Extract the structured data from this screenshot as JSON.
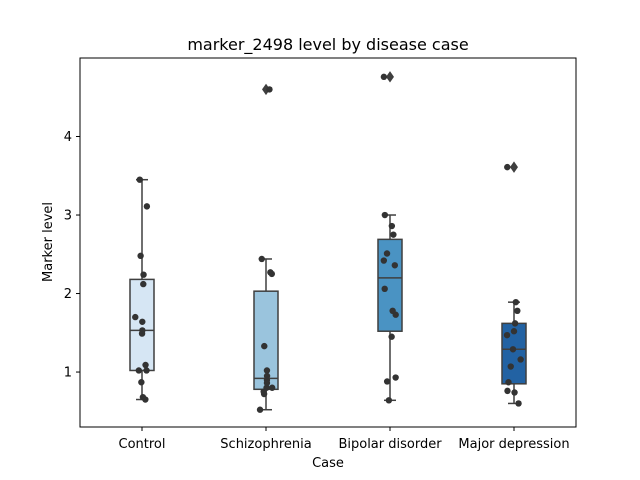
{
  "chart_data": {
    "type": "box",
    "title": "marker_2498 level by disease case",
    "xlabel": "Case",
    "ylabel": "Marker level",
    "categories": [
      "Control",
      "Schizophrenia",
      "Bipolar disorder",
      "Major depression"
    ],
    "ylim": [
      0.3,
      5.0
    ],
    "yticks": [
      1,
      2,
      3,
      4
    ],
    "grid": false,
    "legend": "none",
    "box_colors": [
      "#d6e6f4",
      "#9ac4dd",
      "#4a93c3",
      "#2262a3"
    ],
    "outline_color": "#3f3f3f",
    "point_color": "#333333",
    "boxes": [
      {
        "category": "Control",
        "whisker_low": 0.65,
        "q1": 1.02,
        "median": 1.53,
        "q3": 2.18,
        "whisker_high": 3.45,
        "outliers": []
      },
      {
        "category": "Schizophrenia",
        "whisker_low": 0.52,
        "q1": 0.78,
        "median": 0.92,
        "q3": 2.03,
        "whisker_high": 2.44,
        "outliers": [
          4.6
        ]
      },
      {
        "category": "Bipolar disorder",
        "whisker_low": 0.64,
        "q1": 1.52,
        "median": 2.2,
        "q3": 2.69,
        "whisker_high": 3.0,
        "outliers": [
          4.76
        ]
      },
      {
        "category": "Major depression",
        "whisker_low": 0.6,
        "q1": 0.85,
        "median": 1.29,
        "q3": 1.62,
        "whisker_high": 1.89,
        "outliers": [
          3.61
        ]
      }
    ],
    "points": [
      [
        0.65,
        0.68,
        0.87,
        1.02,
        1.02,
        1.09,
        1.49,
        1.53,
        1.64,
        1.7,
        2.12,
        2.24,
        2.48,
        3.11,
        3.45
      ],
      [
        0.52,
        0.72,
        0.75,
        0.8,
        0.8,
        0.86,
        0.9,
        0.95,
        1.02,
        1.33,
        2.25,
        2.27,
        2.44,
        4.6
      ],
      [
        0.64,
        0.88,
        0.93,
        1.45,
        1.73,
        1.78,
        2.06,
        2.36,
        2.42,
        2.51,
        2.75,
        2.86,
        3.0,
        4.76
      ],
      [
        0.6,
        0.74,
        0.76,
        0.87,
        1.07,
        1.16,
        1.29,
        1.47,
        1.52,
        1.62,
        1.78,
        1.89,
        3.61
      ]
    ]
  }
}
